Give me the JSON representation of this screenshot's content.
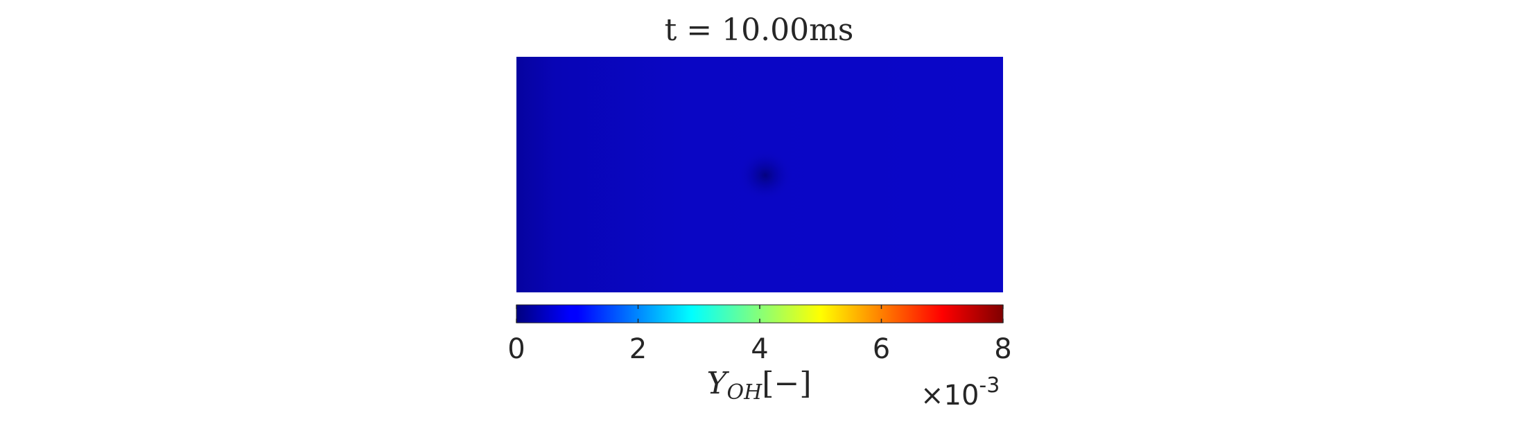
{
  "chart_data": {
    "type": "heatmap",
    "title": "t = 10.00ms",
    "field": {
      "background_value": 0.00075,
      "center_spot": {
        "x_fraction": 0.51,
        "y_fraction": 0.5,
        "value": 0.0002
      }
    },
    "colorbar": {
      "label_main": "Y",
      "label_sub": "OH",
      "label_unit": "[−]",
      "min": 0,
      "max": 8,
      "ticks": [
        0,
        2,
        4,
        6,
        8
      ],
      "tick_labels": [
        "0",
        "2",
        "4",
        "6",
        "8"
      ],
      "multiplier_prefix": "×10",
      "multiplier_exponent": "-3",
      "colormap": "jet",
      "colormap_stops": [
        "#00007f",
        "#0000ff",
        "#00ffff",
        "#ffff00",
        "#ff0000",
        "#7f0000"
      ]
    },
    "colors": {
      "field_blue": "#0a06c6",
      "field_left_edge": "#06039f",
      "spot_color": "#03027c",
      "text_color": "#262626",
      "tick_color": "#262626"
    }
  }
}
